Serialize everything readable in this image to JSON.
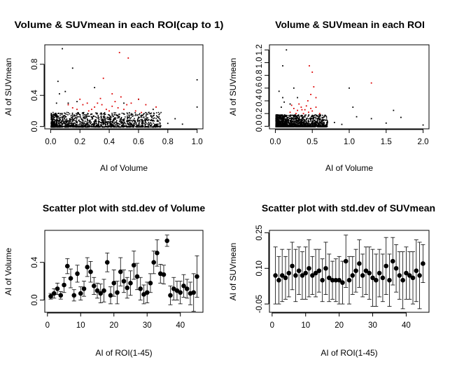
{
  "chart_data": [
    {
      "type": "scatter",
      "title": "Volume & SUVmean in each ROI(cap to 1)",
      "xlabel": "AI of Volume",
      "ylabel": "AI of SUVmean",
      "xlim": [
        -0.04,
        1.04
      ],
      "ylim": [
        -0.03,
        1.05
      ],
      "xticks": [
        "0.0",
        "0.2",
        "0.4",
        "0.6",
        "0.8",
        "1.0"
      ],
      "yticks": [
        "0.0",
        "0.4",
        "0.8"
      ],
      "series": [
        {
          "color": "#000000",
          "description": "dense cloud of black points",
          "points": [
            [
              0.02,
              0.05
            ],
            [
              0.05,
              0.08
            ],
            [
              0.08,
              0.12
            ],
            [
              0.1,
              0.03
            ],
            [
              0.12,
              0.07
            ],
            [
              0.15,
              0.1
            ],
            [
              0.18,
              0.05
            ],
            [
              0.2,
              0.15
            ],
            [
              0.22,
              0.08
            ],
            [
              0.25,
              0.04
            ],
            [
              0.28,
              0.12
            ],
            [
              0.3,
              0.06
            ],
            [
              0.33,
              0.09
            ],
            [
              0.36,
              0.04
            ],
            [
              0.4,
              0.11
            ],
            [
              0.45,
              0.05
            ],
            [
              0.5,
              0.08
            ],
            [
              0.55,
              0.04
            ],
            [
              0.6,
              0.12
            ],
            [
              0.65,
              0.05
            ],
            [
              0.7,
              0.08
            ],
            [
              0.8,
              0.04
            ],
            [
              0.9,
              0.03
            ],
            [
              1.0,
              0.25
            ],
            [
              1.0,
              0.6
            ],
            [
              0.05,
              0.58
            ],
            [
              0.1,
              0.45
            ],
            [
              0.15,
              0.75
            ],
            [
              0.08,
              1.0
            ],
            [
              0.3,
              0.5
            ],
            [
              0.6,
              0.35
            ],
            [
              0.5,
              0.3
            ],
            [
              0.7,
              0.22
            ],
            [
              0.85,
              0.1
            ],
            [
              0.04,
              0.3
            ],
            [
              0.06,
              0.42
            ],
            [
              0.12,
              0.3
            ],
            [
              0.18,
              0.32
            ]
          ]
        },
        {
          "color": "#dd0000",
          "description": "red points",
          "points": [
            [
              0.18,
              0.22
            ],
            [
              0.22,
              0.28
            ],
            [
              0.25,
              0.3
            ],
            [
              0.28,
              0.22
            ],
            [
              0.3,
              0.25
            ],
            [
              0.32,
              0.3
            ],
            [
              0.35,
              0.28
            ],
            [
              0.38,
              0.22
            ],
            [
              0.4,
              0.2
            ],
            [
              0.42,
              0.26
            ],
            [
              0.44,
              0.32
            ],
            [
              0.46,
              0.24
            ],
            [
              0.48,
              0.38
            ],
            [
              0.5,
              0.22
            ],
            [
              0.52,
              0.28
            ],
            [
              0.55,
              0.3
            ],
            [
              0.58,
              0.2
            ],
            [
              0.6,
              0.35
            ],
            [
              0.65,
              0.28
            ],
            [
              0.2,
              0.35
            ],
            [
              0.26,
              0.2
            ],
            [
              0.34,
              0.36
            ],
            [
              0.47,
              0.95
            ],
            [
              0.53,
              0.88
            ],
            [
              0.36,
              0.62
            ],
            [
              0.12,
              0.28
            ],
            [
              0.15,
              0.24
            ],
            [
              0.62,
              0.18
            ],
            [
              0.72,
              0.25
            ],
            [
              0.42,
              0.42
            ]
          ]
        }
      ]
    },
    {
      "type": "scatter",
      "title": "Volume & SUVmean in each ROI",
      "xlabel": "AI of Volume",
      "ylabel": "AI of SUVmean",
      "xlim": [
        -0.08,
        2.08
      ],
      "ylim": [
        -0.04,
        1.28
      ],
      "xticks": [
        "0.0",
        "0.5",
        "1.0",
        "1.5",
        "2.0"
      ],
      "yticks": [
        "0.0",
        "0.2",
        "0.4",
        "0.6",
        "0.8",
        "1.0",
        "1.2"
      ],
      "series": [
        {
          "color": "#000000",
          "description": "dense cloud of black points",
          "points": [
            [
              0.02,
              0.05
            ],
            [
              0.05,
              0.08
            ],
            [
              0.1,
              0.12
            ],
            [
              0.15,
              0.04
            ],
            [
              0.2,
              0.09
            ],
            [
              0.25,
              0.05
            ],
            [
              0.3,
              0.14
            ],
            [
              0.35,
              0.06
            ],
            [
              0.4,
              0.1
            ],
            [
              0.45,
              0.04
            ],
            [
              0.5,
              0.08
            ],
            [
              0.55,
              0.12
            ],
            [
              0.6,
              0.05
            ],
            [
              0.65,
              0.09
            ],
            [
              0.7,
              0.04
            ],
            [
              0.8,
              0.06
            ],
            [
              0.9,
              0.03
            ],
            [
              1.1,
              0.15
            ],
            [
              1.3,
              0.12
            ],
            [
              1.5,
              0.05
            ],
            [
              1.7,
              0.14
            ],
            [
              2.0,
              0.02
            ],
            [
              0.1,
              0.95
            ],
            [
              0.15,
              1.2
            ],
            [
              0.05,
              0.55
            ],
            [
              0.1,
              0.45
            ],
            [
              0.2,
              0.35
            ],
            [
              1.0,
              0.6
            ],
            [
              1.05,
              0.3
            ],
            [
              1.6,
              0.25
            ],
            [
              0.08,
              0.3
            ],
            [
              0.12,
              0.38
            ],
            [
              0.3,
              0.45
            ],
            [
              0.25,
              0.6
            ]
          ]
        },
        {
          "color": "#dd0000",
          "description": "red points",
          "points": [
            [
              0.2,
              0.22
            ],
            [
              0.25,
              0.28
            ],
            [
              0.3,
              0.25
            ],
            [
              0.35,
              0.3
            ],
            [
              0.38,
              0.2
            ],
            [
              0.4,
              0.26
            ],
            [
              0.42,
              0.32
            ],
            [
              0.45,
              0.22
            ],
            [
              0.48,
              0.28
            ],
            [
              0.5,
              0.24
            ],
            [
              0.55,
              0.3
            ],
            [
              0.28,
              0.2
            ],
            [
              0.32,
              0.35
            ],
            [
              0.44,
              0.4
            ],
            [
              0.46,
              0.95
            ],
            [
              0.5,
              0.85
            ],
            [
              0.52,
              0.62
            ],
            [
              0.55,
              0.45
            ],
            [
              0.6,
              0.2
            ],
            [
              0.36,
              0.26
            ],
            [
              0.22,
              0.33
            ],
            [
              0.48,
              0.5
            ],
            [
              1.3,
              0.68
            ]
          ]
        }
      ]
    },
    {
      "type": "scatter",
      "title": "Scatter plot with std.dev of Volume",
      "xlabel": "AI of ROI(1-45)",
      "ylabel": "AI of Volume",
      "xlim": [
        -0.8,
        46.8
      ],
      "ylim": [
        -0.13,
        0.74
      ],
      "xticks": [
        "0",
        "10",
        "20",
        "30",
        "40"
      ],
      "yticks": [
        "0.0",
        "0.4"
      ],
      "x": [
        1,
        2,
        3,
        4,
        5,
        6,
        7,
        8,
        9,
        10,
        11,
        12,
        13,
        14,
        15,
        16,
        17,
        18,
        19,
        20,
        21,
        22,
        23,
        24,
        25,
        26,
        27,
        28,
        29,
        30,
        31,
        32,
        33,
        34,
        35,
        36,
        37,
        38,
        39,
        40,
        41,
        42,
        43,
        44,
        45
      ],
      "values": [
        0.04,
        0.07,
        0.12,
        0.05,
        0.16,
        0.36,
        0.23,
        0.05,
        0.28,
        0.07,
        0.12,
        0.35,
        0.3,
        0.15,
        0.1,
        0.07,
        0.1,
        0.4,
        0.05,
        0.18,
        0.08,
        0.3,
        0.2,
        0.13,
        0.18,
        0.37,
        0.25,
        0.12,
        0.06,
        0.08,
        0.18,
        0.4,
        0.5,
        0.28,
        0.27,
        0.63,
        0.05,
        0.12,
        0.1,
        0.08,
        0.15,
        0.12,
        0.07,
        0.08,
        0.25
      ],
      "errors": [
        0.03,
        0.05,
        0.06,
        0.04,
        0.08,
        0.08,
        0.1,
        0.06,
        0.09,
        0.07,
        0.08,
        0.1,
        0.11,
        0.09,
        0.08,
        0.1,
        0.12,
        0.1,
        0.09,
        0.14,
        0.12,
        0.15,
        0.12,
        0.11,
        0.13,
        0.15,
        0.14,
        0.12,
        0.1,
        0.11,
        0.1,
        0.12,
        0.14,
        0.1,
        0.1,
        0.06,
        0.1,
        0.12,
        0.1,
        0.12,
        0.12,
        0.1,
        0.12,
        0.2,
        0.22
      ]
    },
    {
      "type": "scatter",
      "title": "Scatter plot with std.dev of SUVmean",
      "xlabel": "AI of ROI(1-45)",
      "ylabel": "AI of SUVmean",
      "xlim": [
        -0.8,
        46.8
      ],
      "ylim": [
        -0.085,
        0.26
      ],
      "xticks": [
        "0",
        "10",
        "20",
        "30",
        "40"
      ],
      "yticks": [
        "-0.05",
        "0.10",
        "0.25"
      ],
      "x": [
        1,
        2,
        3,
        4,
        5,
        6,
        7,
        8,
        9,
        10,
        11,
        12,
        13,
        14,
        15,
        16,
        17,
        18,
        19,
        20,
        21,
        22,
        23,
        24,
        25,
        26,
        27,
        28,
        29,
        30,
        31,
        32,
        33,
        34,
        35,
        36,
        37,
        38,
        39,
        40,
        41,
        42,
        43,
        44,
        45
      ],
      "values": [
        0.07,
        0.05,
        0.07,
        0.06,
        0.08,
        0.11,
        0.07,
        0.09,
        0.07,
        0.08,
        0.1,
        0.07,
        0.08,
        0.09,
        0.05,
        0.1,
        0.06,
        0.05,
        0.05,
        0.05,
        0.04,
        0.13,
        0.05,
        0.07,
        0.09,
        0.12,
        0.07,
        0.09,
        0.08,
        0.06,
        0.05,
        0.08,
        0.06,
        0.11,
        0.05,
        0.13,
        0.1,
        0.07,
        0.05,
        0.08,
        0.07,
        0.06,
        0.09,
        0.07,
        0.12
      ],
      "errors": [
        0.12,
        0.1,
        0.11,
        0.09,
        0.1,
        0.1,
        0.11,
        0.1,
        0.1,
        0.11,
        0.12,
        0.08,
        0.1,
        0.09,
        0.09,
        0.11,
        0.1,
        0.08,
        0.09,
        0.1,
        0.09,
        0.11,
        0.1,
        0.08,
        0.09,
        0.1,
        0.09,
        0.1,
        0.11,
        0.12,
        0.11,
        0.1,
        0.1,
        0.12,
        0.11,
        0.1,
        0.1,
        0.1,
        0.12,
        0.11,
        0.1,
        0.11,
        0.13,
        0.14,
        0.08
      ]
    }
  ]
}
